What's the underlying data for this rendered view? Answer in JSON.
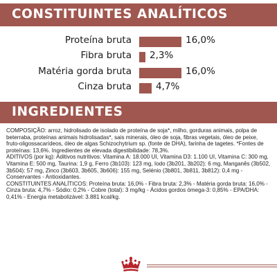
{
  "header": {
    "title": "CONSTITUINTES ANALÍTICOS"
  },
  "nutrients": [
    {
      "label": "Proteína bruta",
      "value": "16,0%",
      "level": 16.0
    },
    {
      "label": "Fibra bruta",
      "value": "2,3%",
      "level": 2.3
    },
    {
      "label": "Matéria gorda bruta",
      "value": "16,0%",
      "level": 16.0
    },
    {
      "label": "Cinza bruta",
      "value": "4,7%",
      "level": 4.7
    }
  ],
  "ingredients": {
    "title": "INGREDIENTES",
    "composition": "COMPOSIÇÃO: arroz, hidrolisado de isolado de proteína de soja*, milho, gorduras animais, polpa de beterraba, proteínas animais hidrolisadas*, sais minerais, óleo de soja, fibras vegetais, óleo de peixe, fruto-oligossacarídeos, óleo de algas Schizochytrium sp. (fonte de DHA), farinha de tagetes. *Fontes de proteínas: 13,6%. Ingredientes de elevada digestibilidade: 78,3%.",
    "additives": "ADITIVOS (por kg): Aditivos nutritivos: Vitamina A: 18.000 UI, Vitamina D3: 1.100 UI, Vitamina C: 300 mg, Vitamina E: 500 mg, Taurina: 1,9 g, Ferro (3b103): 123 mg, Iodo (3b201, 3b202): 6 mg, Manganês (3b502, 3b504): 57 mg, Zinco (3b603, 3b605, 3b606): 155 mg, Selénio (3b801, 3b811, 3b812): 0,4 mg - Conservantes - Antioxidantes.",
    "analytical": "CONSTITUINTES ANALÍTICOS: Proteína bruta: 16,0% - Fibra bruta: 2,3% - Matéria gorda bruta: 16,0% - Cinza bruta: 4,7% - Sódio: 0,2% - Cobre (total): 3 mg/kg - Ácidos gordos ómega-3: 0,85% - EPA/DHA: 0,41% - Energia metabolizável: 3.881 kcal/kg."
  },
  "colors": {
    "accent": "#a0574f",
    "logo": "#b8252c"
  },
  "logo": {
    "icon": "crown-icon"
  }
}
